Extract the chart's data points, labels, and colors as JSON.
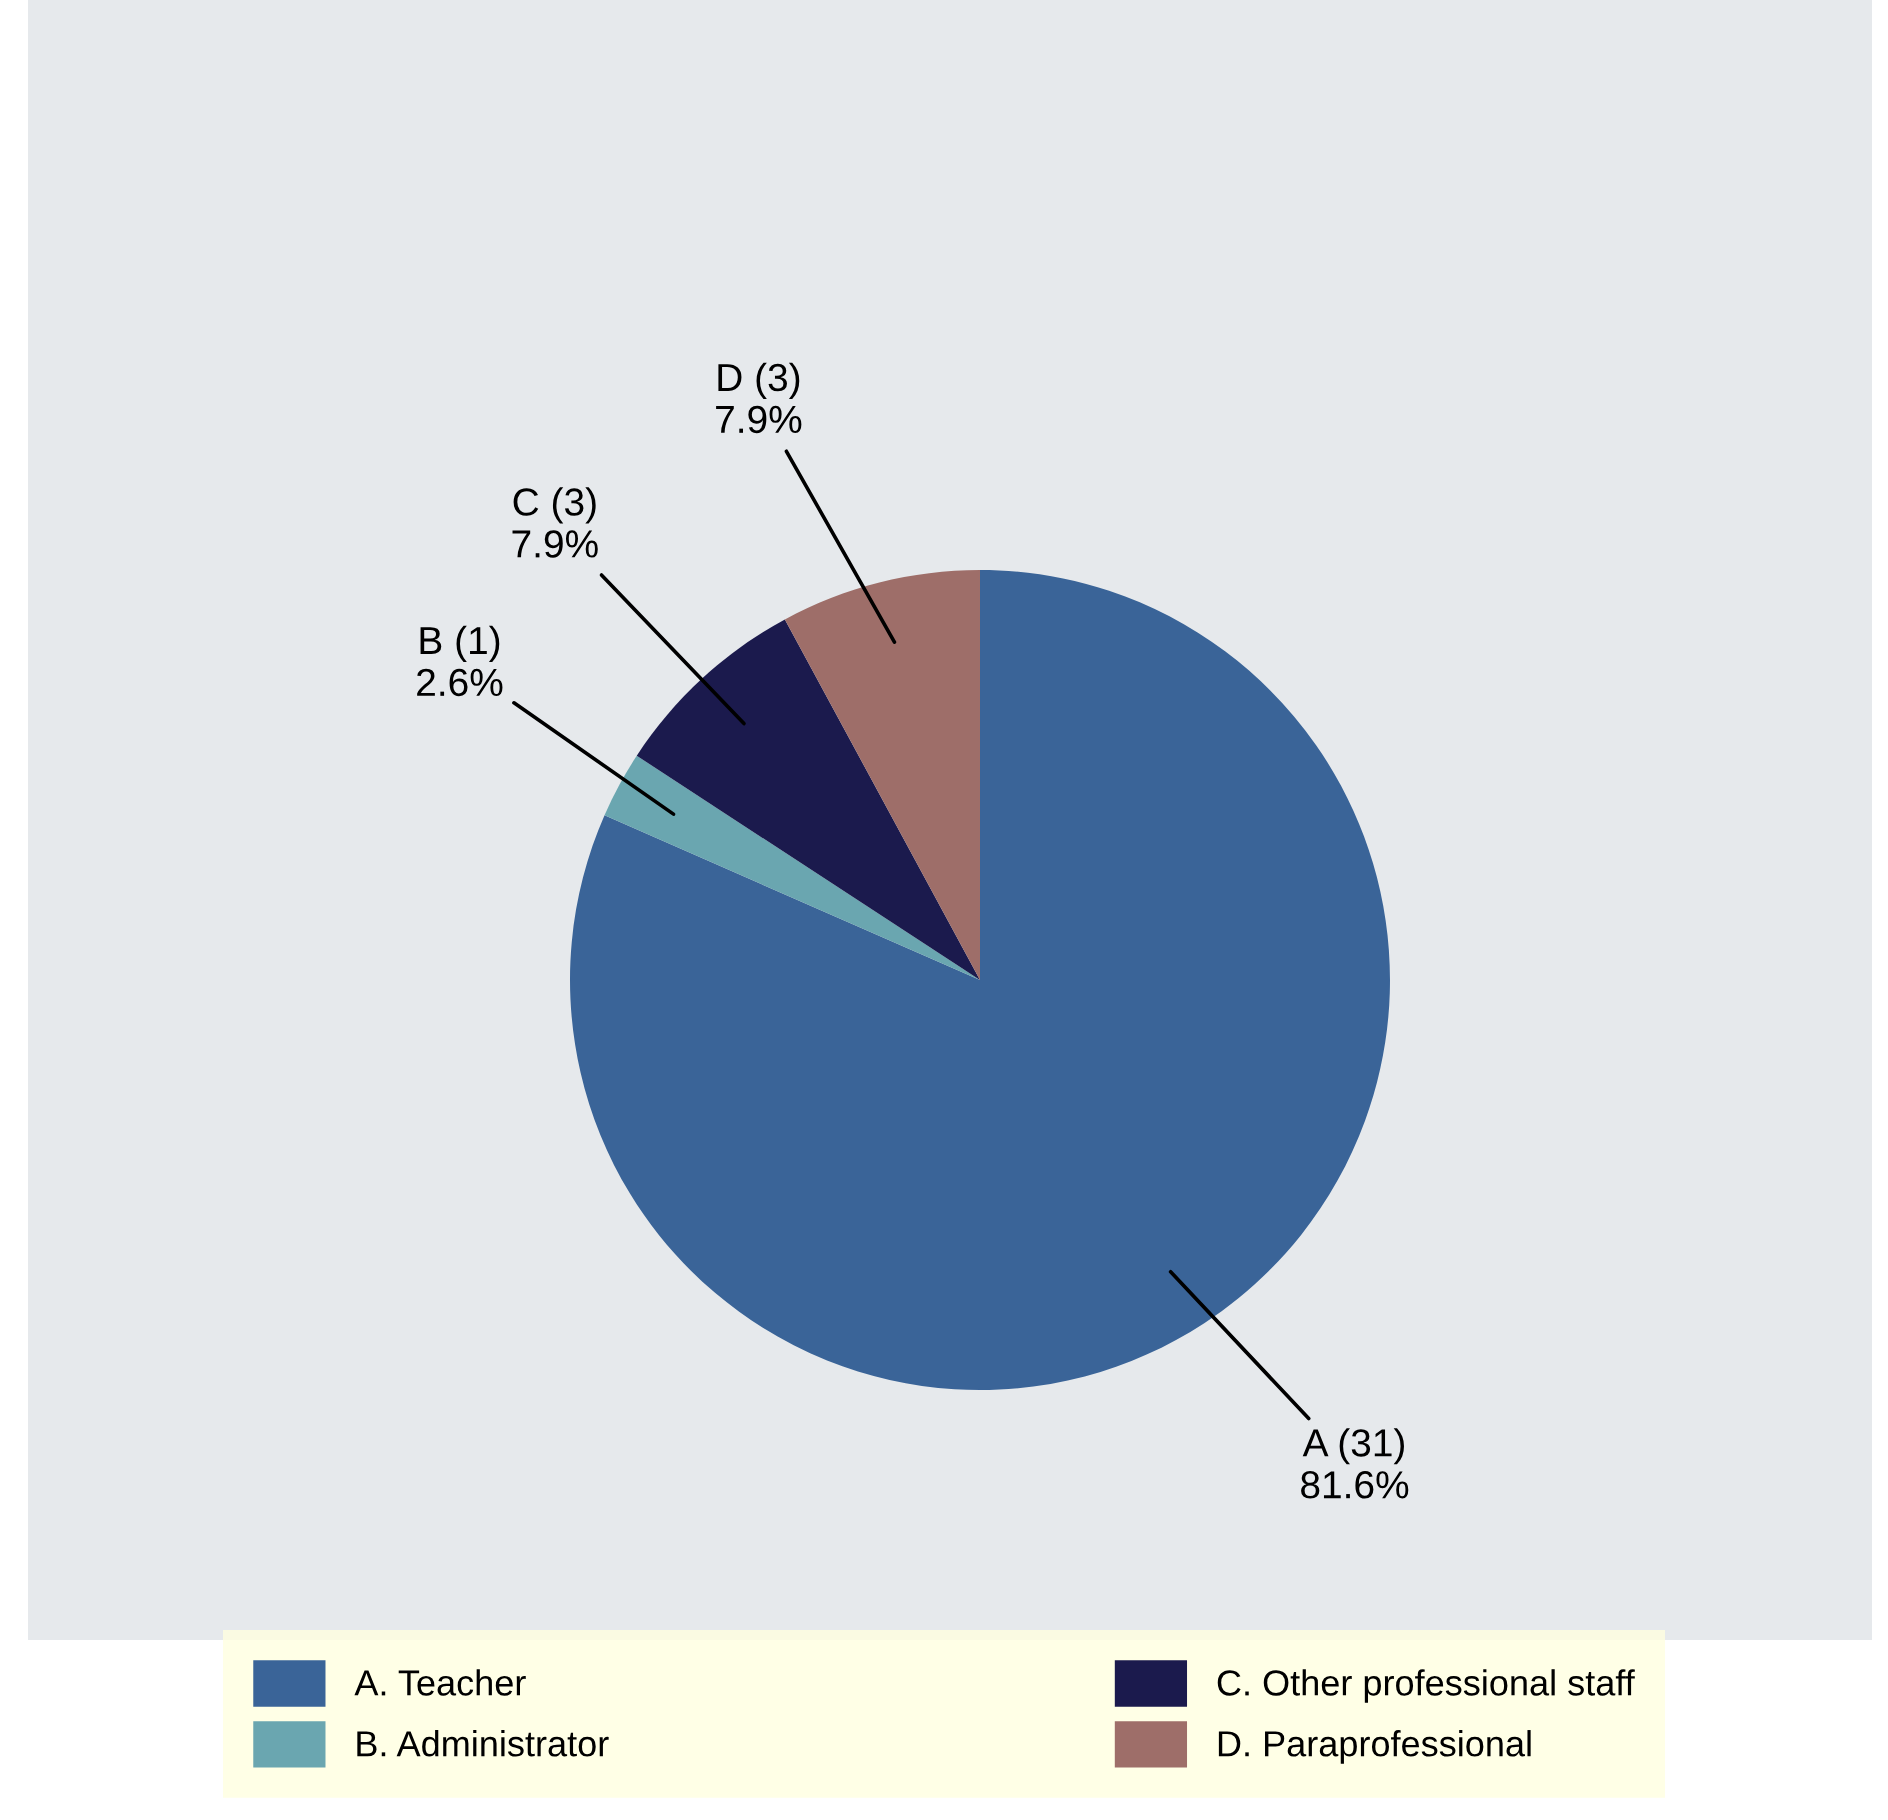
{
  "chart_data": {
    "type": "pie",
    "categories": [
      "A. Teacher",
      "B. Administrator",
      "C. Other professional staff",
      "D. Paraprofessional"
    ],
    "values": [
      31,
      1,
      3,
      3
    ],
    "colors": [
      "#3a6498",
      "#6aa6b0",
      "#1b1a4d",
      "#9e6e69"
    ],
    "value_labels": [
      "A (31)\n81.6%",
      "B (1)\n2.6%",
      "C (3)\n7.9%",
      "D (3)\n7.9%"
    ],
    "legend": "bottom"
  }
}
